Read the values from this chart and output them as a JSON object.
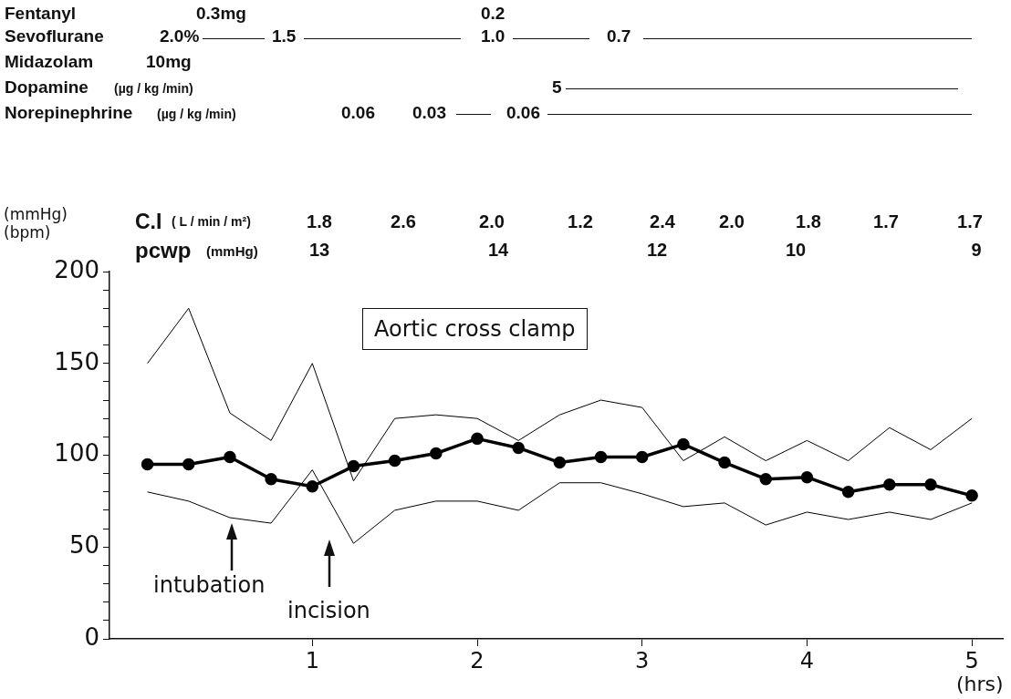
{
  "chart_data": {
    "type": "line",
    "xlabel": "(hrs)",
    "ylabel": "(mmHg) (bpm)",
    "x": [
      0,
      0.25,
      0.5,
      0.75,
      1,
      1.25,
      1.5,
      1.75,
      2,
      2.25,
      2.5,
      2.75,
      3,
      3.25,
      3.5,
      3.75,
      4,
      4.25,
      4.5,
      4.75,
      5
    ],
    "series": [
      {
        "color": "#000000",
        "marker": "none",
        "values": [
          150,
          180,
          123,
          108,
          150,
          86,
          120,
          122,
          120,
          108,
          122,
          130,
          126,
          97,
          110,
          97,
          108,
          97,
          115,
          103,
          120
        ]
      },
      {
        "color": "#000000",
        "marker": "none",
        "values": [
          80,
          75,
          66,
          63,
          92,
          52,
          70,
          75,
          75,
          70,
          85,
          85,
          79,
          72,
          74,
          62,
          69,
          65,
          69,
          65,
          74
        ]
      },
      {
        "color": "#000000",
        "marker": "circle",
        "values": [
          95,
          95,
          99,
          87,
          83,
          94,
          97,
          101,
          109,
          104,
          96,
          99,
          99,
          106,
          96,
          87,
          88,
          80,
          84,
          84,
          78
        ]
      }
    ],
    "xlim": [
      -0.23,
      5.19
    ],
    "xticks": [
      1,
      2,
      3,
      4,
      5
    ],
    "ylim": [
      0,
      200
    ],
    "yticks": [
      0,
      {
        "value": 10,
        "label": null
      },
      {
        "value": 20,
        "label": null
      },
      {
        "value": 30,
        "label": null
      },
      {
        "value": 40,
        "label": null
      },
      50,
      {
        "value": 60,
        "label": null
      },
      {
        "value": 70,
        "label": null
      },
      {
        "value": 80,
        "label": null
      },
      {
        "value": 90,
        "label": null
      },
      100,
      {
        "value": 110,
        "label": null
      },
      {
        "value": 120,
        "label": null
      },
      {
        "value": 130,
        "label": null
      },
      {
        "value": 140,
        "label": null
      },
      150,
      {
        "value": 160,
        "label": null
      },
      {
        "value": 170,
        "label": null
      },
      {
        "value": 180,
        "label": null
      },
      {
        "value": 190,
        "label": null
      },
      200
    ],
    "grid": false,
    "legend": false,
    "line_style": "solid",
    "annotations": [
      "Fentanyl",
      "0.3mg",
      "0.2",
      "Sevoflurane",
      "2.0%",
      "1.5",
      "1.0",
      "0.7",
      "Midazolam",
      "10mg",
      "Dopamine",
      "(µg / kg /min)",
      "5",
      "Norepinephrine",
      "(µg / kg /min)",
      "0.06",
      "0.03",
      "0.06",
      "C.I",
      "( L / min / m²)",
      "1.8",
      "2.6",
      "2.0",
      "1.2",
      "2.4",
      "2.0",
      "1.8",
      "1.7",
      "1.7",
      "pcwp",
      "(mmHg)",
      "13",
      "14",
      "12",
      "10",
      "9",
      "Aortic cross clamp",
      "intubation",
      "incision"
    ]
  }
}
